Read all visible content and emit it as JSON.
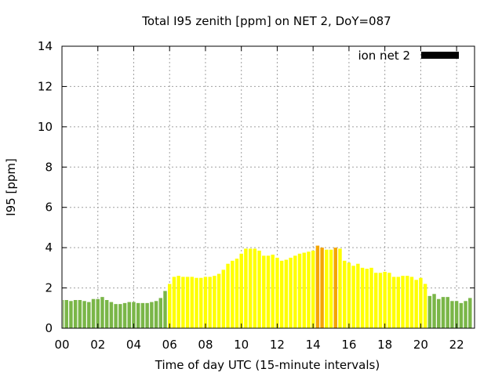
{
  "chart_data": {
    "type": "bar",
    "title": "Total I95 zenith [ppm] on NET 2, DoY=087",
    "xlabel": "Time of day UTC (15-minute intervals)",
    "ylabel": "I95 [ppm]",
    "xlim": [
      0,
      23
    ],
    "ylim": [
      0,
      14
    ],
    "x_ticks": [
      "00",
      "02",
      "04",
      "06",
      "08",
      "10",
      "12",
      "14",
      "16",
      "18",
      "20",
      "22"
    ],
    "y_ticks": [
      "0",
      "2",
      "4",
      "6",
      "8",
      "10",
      "12",
      "14"
    ],
    "grid": true,
    "legend": {
      "position": "top-right",
      "label": "ion net 2",
      "color": "#000000"
    },
    "interval_hours": 0.25,
    "series": [
      {
        "name": "ion net 2",
        "values": [
          1.4,
          1.4,
          1.35,
          1.4,
          1.4,
          1.35,
          1.3,
          1.45,
          1.45,
          1.55,
          1.4,
          1.3,
          1.2,
          1.2,
          1.25,
          1.3,
          1.3,
          1.25,
          1.25,
          1.25,
          1.3,
          1.35,
          1.5,
          1.85,
          2.2,
          2.55,
          2.6,
          2.55,
          2.55,
          2.55,
          2.5,
          2.5,
          2.55,
          2.55,
          2.6,
          2.7,
          2.9,
          3.2,
          3.35,
          3.45,
          3.7,
          3.95,
          3.95,
          3.95,
          3.85,
          3.6,
          3.6,
          3.65,
          3.5,
          3.35,
          3.4,
          3.5,
          3.6,
          3.7,
          3.75,
          3.8,
          3.85,
          4.1,
          4.0,
          3.9,
          3.9,
          4.0,
          3.95,
          3.35,
          3.25,
          3.1,
          3.2,
          3.0,
          2.95,
          3.0,
          2.75,
          2.75,
          2.8,
          2.75,
          2.55,
          2.55,
          2.6,
          2.6,
          2.55,
          2.4,
          2.5,
          2.2,
          1.6,
          1.7,
          1.45,
          1.55,
          1.55,
          1.35,
          1.35,
          1.25,
          1.35,
          1.5
        ]
      }
    ],
    "color_scale": [
      {
        "max": 2.0,
        "color": "#7ab648"
      },
      {
        "max": 4.0,
        "color": "#ffff00"
      },
      {
        "max": 99,
        "color": "#f4a500"
      }
    ]
  }
}
